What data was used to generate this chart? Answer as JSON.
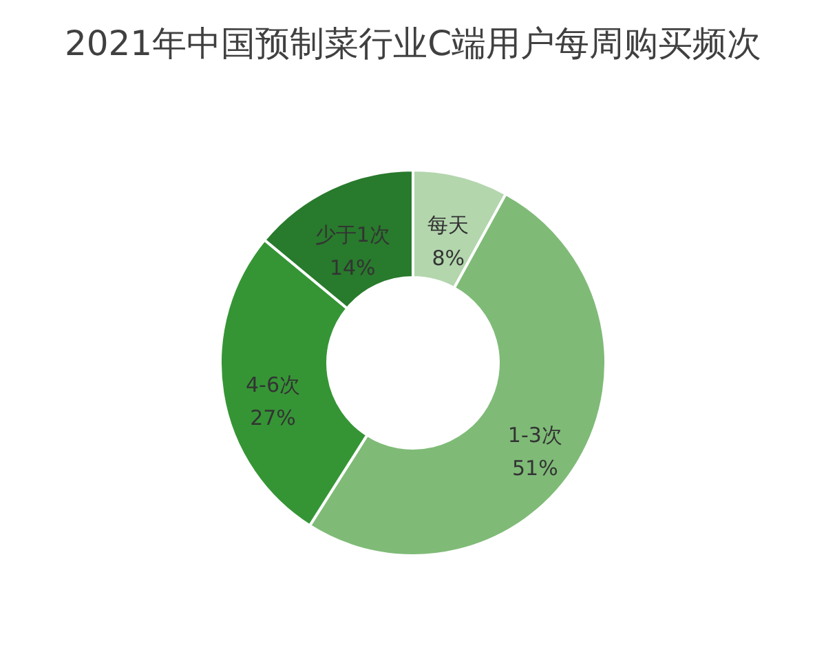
{
  "chart_data": {
    "type": "donut",
    "title": "2021年中国预制菜行业C端用户每周购买频次",
    "categories": [
      "每天",
      "1-3次",
      "4-6次",
      "少于1次"
    ],
    "values": [
      8,
      51,
      27,
      14
    ],
    "value_labels": [
      "8%",
      "51%",
      "27%",
      "14%"
    ],
    "colors": [
      "#b3d6ad",
      "#7fbb77",
      "#359535",
      "#287a2c"
    ],
    "legend": false
  }
}
